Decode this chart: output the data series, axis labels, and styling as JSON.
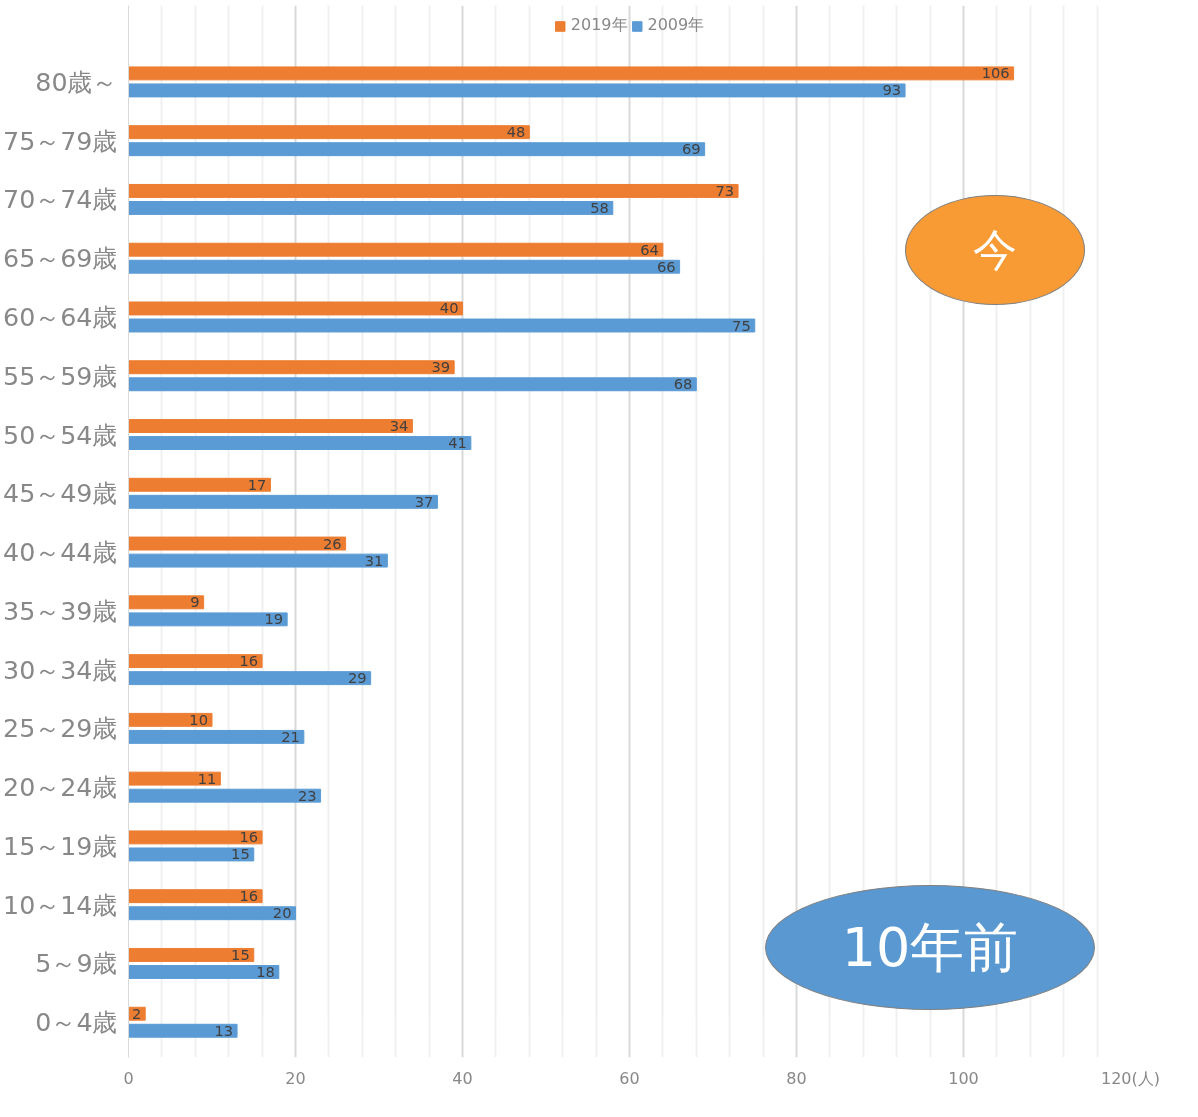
{
  "chart_data": {
    "type": "bar",
    "orientation": "horizontal",
    "categories": [
      "80歳～",
      "75～79歳",
      "70～74歳",
      "65～69歳",
      "60～64歳",
      "55～59歳",
      "50～54歳",
      "45～49歳",
      "40～44歳",
      "35～39歳",
      "30～34歳",
      "25～29歳",
      "20～24歳",
      "15～19歳",
      "10～14歳",
      "5～9歳",
      "0～4歳"
    ],
    "series": [
      {
        "name": "2019年",
        "color": "#ed7d31",
        "values": [
          106,
          48,
          73,
          64,
          40,
          39,
          34,
          17,
          26,
          9,
          16,
          10,
          11,
          16,
          16,
          15,
          2
        ]
      },
      {
        "name": "2009年",
        "color": "#5b9bd5",
        "values": [
          93,
          69,
          58,
          66,
          75,
          68,
          41,
          37,
          31,
          19,
          29,
          21,
          23,
          15,
          20,
          18,
          13
        ]
      }
    ],
    "xlim": [
      0,
      120
    ],
    "xticks": [
      0,
      20,
      40,
      60,
      80,
      100,
      {
        "value": 120,
        "label": "120(人)"
      }
    ],
    "grid": "x",
    "legend": "top",
    "data_labels": true,
    "annotations": [
      "今",
      "10年前"
    ]
  }
}
